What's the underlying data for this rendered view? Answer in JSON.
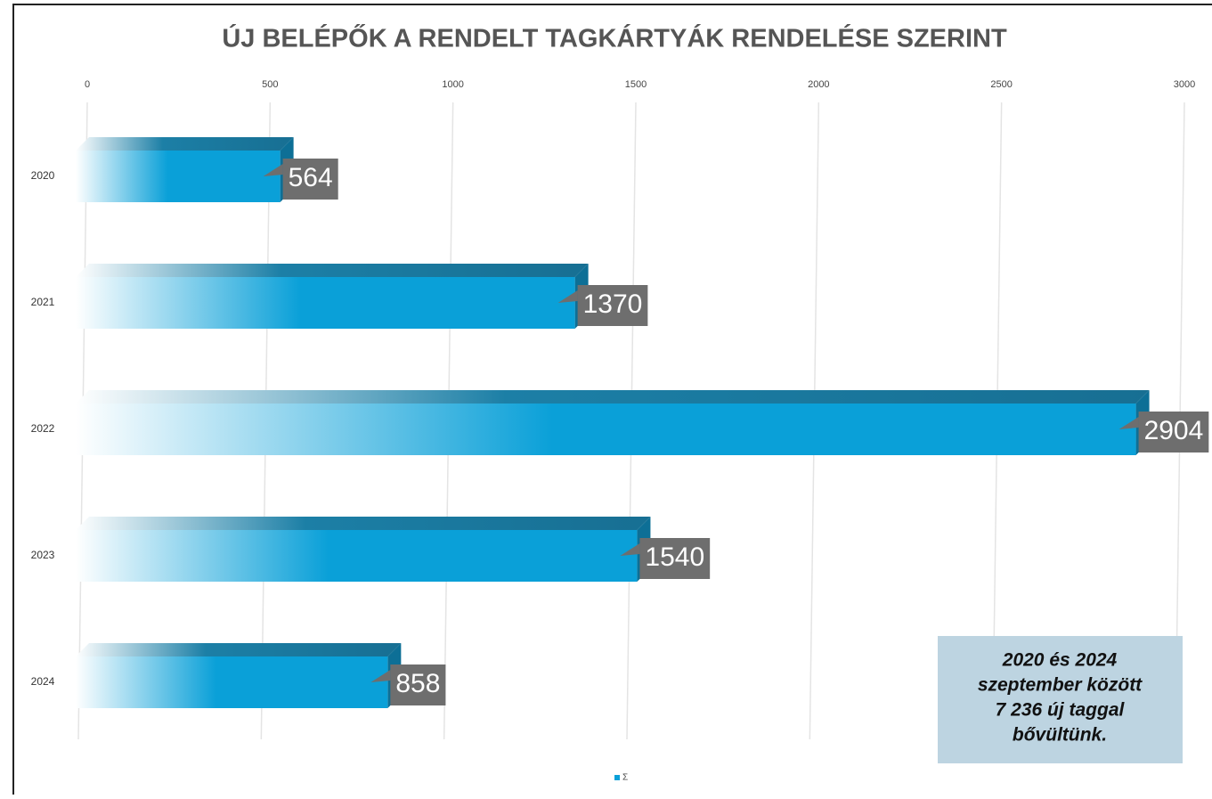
{
  "chart_data": {
    "type": "bar3d_horizontal",
    "title": "ÚJ BELÉPŐK A RENDELT TAGKÁRTYÁK RENDELÉSE SZERINT",
    "categories": [
      "2020",
      "2021",
      "2022",
      "2023",
      "2024"
    ],
    "series": [
      {
        "name": "Σ",
        "color": "#0aa0d8",
        "values": [
          564,
          1370,
          2904,
          1540,
          858
        ]
      }
    ],
    "xlim": [
      0,
      3000
    ],
    "xticks": [
      0,
      500,
      1000,
      1500,
      2000,
      2500,
      3000
    ],
    "grid": true,
    "annotation": [
      "2020 és 2024",
      "szeptember között",
      "7 236 új taggal",
      "bővültünk."
    ]
  }
}
